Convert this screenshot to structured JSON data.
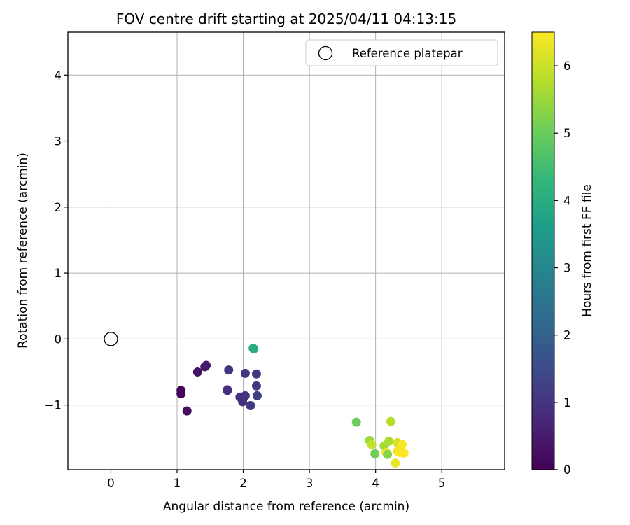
{
  "chart_data": {
    "type": "scatter",
    "title": "FOV centre drift starting at 2025/04/11 04:13:15",
    "xlabel": "Angular distance from reference (arcmin)",
    "ylabel": "Rotation from reference (arcmin)",
    "xlim": [
      -0.65,
      5.95
    ],
    "ylim": [
      -1.98,
      4.65
    ],
    "xticks": [
      "0",
      "1",
      "2",
      "3",
      "4",
      "5"
    ],
    "yticks": [
      "−1",
      "0",
      "1",
      "2",
      "3",
      "4"
    ],
    "grid": true,
    "legend": {
      "position": "top-right",
      "entries": [
        "Reference platepar"
      ]
    },
    "reference_point": {
      "x": 0,
      "y": 0,
      "marker": "open-circle"
    },
    "colorbar": {
      "label": "Hours from first FF file",
      "colormap": "viridis",
      "range": [
        0,
        6.5
      ],
      "ticks": [
        "0",
        "1",
        "2",
        "3",
        "4",
        "5",
        "6"
      ]
    },
    "points": [
      {
        "x": 1.06,
        "y": -0.78,
        "hours": 0.05
      },
      {
        "x": 1.06,
        "y": -0.83,
        "hours": 0.1
      },
      {
        "x": 1.15,
        "y": -1.09,
        "hours": 0.2
      },
      {
        "x": 1.31,
        "y": -0.5,
        "hours": 0.3
      },
      {
        "x": 1.42,
        "y": -0.42,
        "hours": 0.4
      },
      {
        "x": 1.44,
        "y": -0.4,
        "hours": 0.45
      },
      {
        "x": 1.76,
        "y": -0.77,
        "hours": 0.85
      },
      {
        "x": 1.76,
        "y": -0.78,
        "hours": 0.9
      },
      {
        "x": 1.78,
        "y": -0.47,
        "hours": 1.0
      },
      {
        "x": 1.95,
        "y": -0.88,
        "hours": 0.95
      },
      {
        "x": 1.99,
        "y": -0.95,
        "hours": 0.9
      },
      {
        "x": 2.03,
        "y": -0.86,
        "hours": 1.0
      },
      {
        "x": 2.03,
        "y": -0.52,
        "hours": 1.05
      },
      {
        "x": 2.11,
        "y": -1.01,
        "hours": 1.1
      },
      {
        "x": 2.2,
        "y": -0.53,
        "hours": 1.1
      },
      {
        "x": 2.2,
        "y": -0.71,
        "hours": 1.15
      },
      {
        "x": 2.21,
        "y": -0.86,
        "hours": 1.2
      },
      {
        "x": 2.15,
        "y": -0.14,
        "hours": 4.0
      },
      {
        "x": 2.16,
        "y": -0.15,
        "hours": 4.05
      },
      {
        "x": 3.71,
        "y": -1.26,
        "hours": 5.0
      },
      {
        "x": 3.91,
        "y": -1.54,
        "hours": 5.5
      },
      {
        "x": 3.94,
        "y": -1.6,
        "hours": 5.9
      },
      {
        "x": 3.99,
        "y": -1.74,
        "hours": 5.1
      },
      {
        "x": 4.13,
        "y": -1.62,
        "hours": 5.6
      },
      {
        "x": 4.16,
        "y": -1.72,
        "hours": 6.3
      },
      {
        "x": 4.18,
        "y": -1.75,
        "hours": 5.3
      },
      {
        "x": 4.2,
        "y": -1.55,
        "hours": 5.7
      },
      {
        "x": 4.23,
        "y": -1.25,
        "hours": 5.8
      },
      {
        "x": 4.3,
        "y": -1.88,
        "hours": 6.3
      },
      {
        "x": 4.33,
        "y": -1.57,
        "hours": 6.1
      },
      {
        "x": 4.33,
        "y": -1.7,
        "hours": 6.4
      },
      {
        "x": 4.37,
        "y": -1.72,
        "hours": 6.45
      },
      {
        "x": 4.4,
        "y": -1.6,
        "hours": 6.45
      },
      {
        "x": 4.43,
        "y": -1.73,
        "hours": 6.5
      }
    ]
  }
}
